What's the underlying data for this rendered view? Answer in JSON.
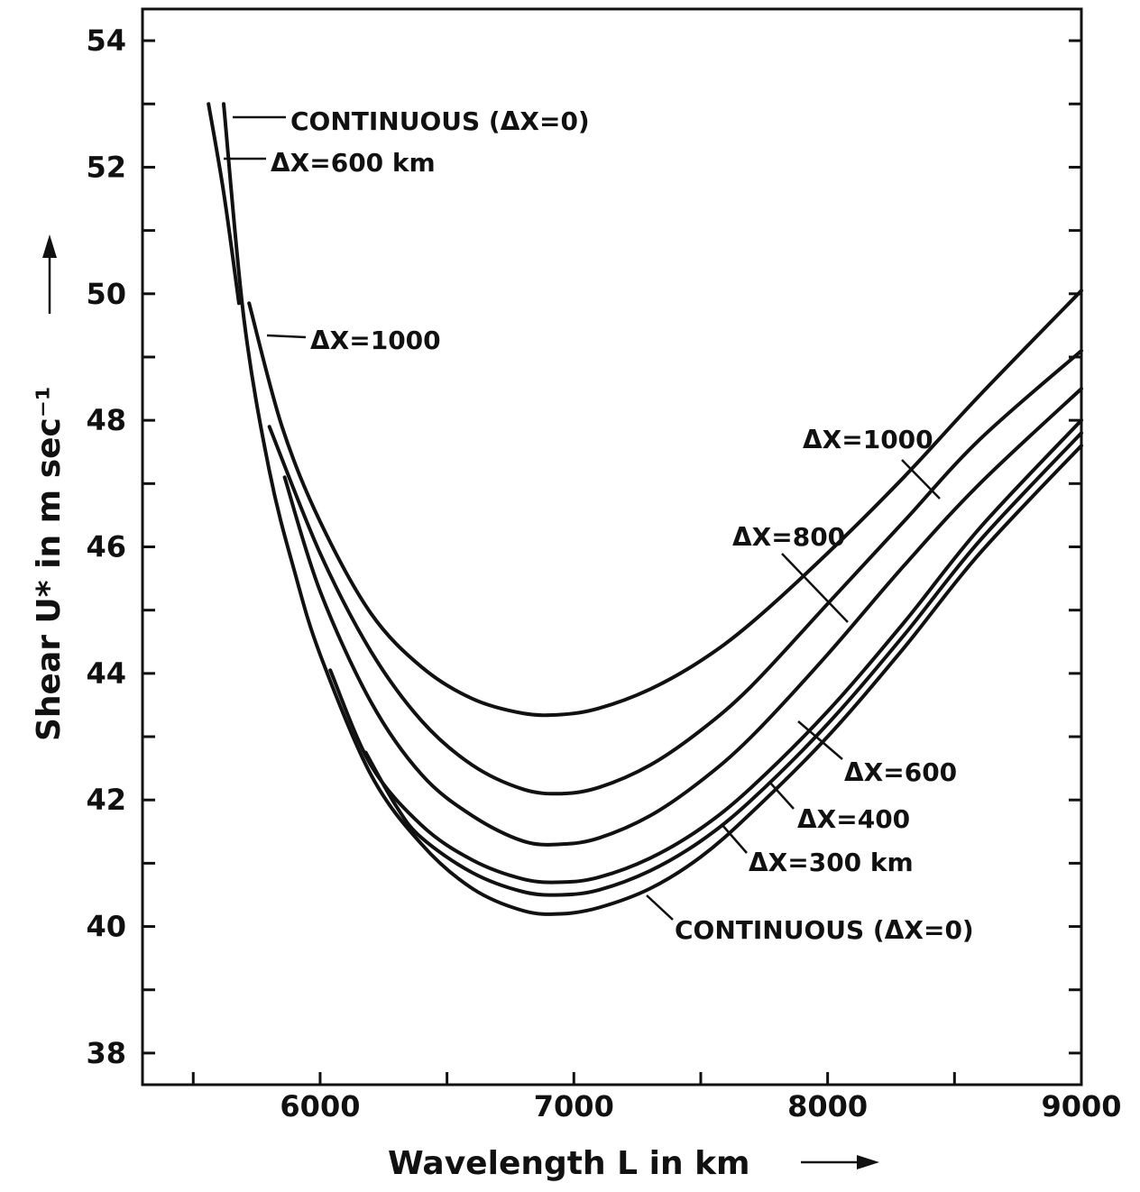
{
  "chart_data": {
    "type": "line",
    "title": "",
    "xlabel": "Wavelength  L  in km",
    "ylabel": "Shear U* in m sec⁻¹",
    "xlim": [
      5300,
      9000
    ],
    "ylim": [
      37.5,
      54.5
    ],
    "xticks_major": [
      6000,
      7000,
      8000,
      9000
    ],
    "xticks_minor": [
      5500,
      6500,
      7500,
      8500
    ],
    "yticks_major": [
      38,
      40,
      42,
      44,
      46,
      48,
      50,
      52,
      54
    ],
    "yticks_minor": [
      39,
      41,
      43,
      45,
      47,
      49,
      51,
      53
    ],
    "grid": false,
    "legend": "none",
    "series": [
      {
        "name": "CONTINUOUS (ΔX=0)",
        "x": [
          5620,
          5700,
          5800,
          5900,
          6000,
          6200,
          6400,
          6600,
          6800,
          6950,
          7100,
          7300,
          7500,
          7700,
          8000,
          8300,
          8600,
          9000
        ],
        "y": [
          53.0,
          49.6,
          47.2,
          45.6,
          44.3,
          42.4,
          41.3,
          40.6,
          40.25,
          40.2,
          40.3,
          40.6,
          41.1,
          41.8,
          43.0,
          44.4,
          45.9,
          47.6
        ]
      },
      {
        "name": "ΔX=300 km",
        "x": [
          6180,
          6300,
          6400,
          6600,
          6800,
          6950,
          7100,
          7300,
          7500,
          7700,
          8000,
          8300,
          8600,
          9000
        ],
        "y": [
          42.75,
          41.9,
          41.4,
          40.85,
          40.55,
          40.5,
          40.58,
          40.88,
          41.35,
          42.0,
          43.2,
          44.6,
          46.1,
          47.8
        ]
      },
      {
        "name": "ΔX=400",
        "x": [
          6040,
          6200,
          6400,
          6600,
          6800,
          6950,
          7100,
          7300,
          7500,
          7700,
          8000,
          8300,
          8600,
          9000
        ],
        "y": [
          44.05,
          42.55,
          41.6,
          41.05,
          40.75,
          40.7,
          40.78,
          41.08,
          41.55,
          42.2,
          43.4,
          44.8,
          46.3,
          48.0
        ]
      },
      {
        "name": "ΔX=600",
        "x": [
          5860,
          6000,
          6200,
          6400,
          6600,
          6800,
          6950,
          7100,
          7300,
          7500,
          7700,
          8000,
          8300,
          8600,
          9000
        ],
        "y": [
          47.1,
          45.3,
          43.55,
          42.4,
          41.75,
          41.35,
          41.3,
          41.4,
          41.75,
          42.3,
          43.0,
          44.3,
          45.7,
          47.0,
          48.5
        ]
      },
      {
        "name": "ΔX=800",
        "x": [
          5800,
          6000,
          6200,
          6400,
          6600,
          6800,
          6950,
          7100,
          7300,
          7500,
          7700,
          8000,
          8300,
          8600,
          9000
        ],
        "y": [
          47.9,
          45.9,
          44.35,
          43.25,
          42.55,
          42.17,
          42.1,
          42.2,
          42.55,
          43.1,
          43.8,
          45.1,
          46.4,
          47.7,
          49.1
        ]
      },
      {
        "name": "ΔX=1000",
        "x": [
          5720,
          5850,
          6000,
          6200,
          6400,
          6600,
          6800,
          6950,
          7100,
          7300,
          7500,
          7700,
          8000,
          8300,
          8600,
          9000
        ],
        "y": [
          49.85,
          47.9,
          46.4,
          44.95,
          44.1,
          43.6,
          43.37,
          43.35,
          43.45,
          43.75,
          44.2,
          44.8,
          45.9,
          47.1,
          48.4,
          50.05
        ]
      },
      {
        "name": "ΔX=600 km",
        "x": [
          5560,
          5620,
          5680
        ],
        "y": [
          53.0,
          51.6,
          49.85
        ]
      }
    ],
    "annotations": [
      {
        "text": "CONTINUOUS (ΔX=0)",
        "series": "CONTINUOUS (ΔX=0)",
        "position": "top-left"
      },
      {
        "text": "ΔX=600 km",
        "series": "ΔX=600 km",
        "position": "top-left"
      },
      {
        "text": "ΔX=1000",
        "series": "ΔX=1000",
        "position": "upper-left"
      },
      {
        "text": "ΔX=1000",
        "series": "ΔX=1000",
        "position": "upper-right"
      },
      {
        "text": "ΔX=800",
        "series": "ΔX=800",
        "position": "right"
      },
      {
        "text": "ΔX=600",
        "series": "ΔX=600",
        "position": "lower-right"
      },
      {
        "text": "ΔX=400",
        "series": "ΔX=400",
        "position": "lower-right"
      },
      {
        "text": "ΔX=300 km",
        "series": "ΔX=300 km",
        "position": "lower-right"
      },
      {
        "text": "CONTINUOUS (ΔX=0)",
        "series": "CONTINUOUS (ΔX=0)",
        "position": "bottom-right"
      }
    ]
  }
}
